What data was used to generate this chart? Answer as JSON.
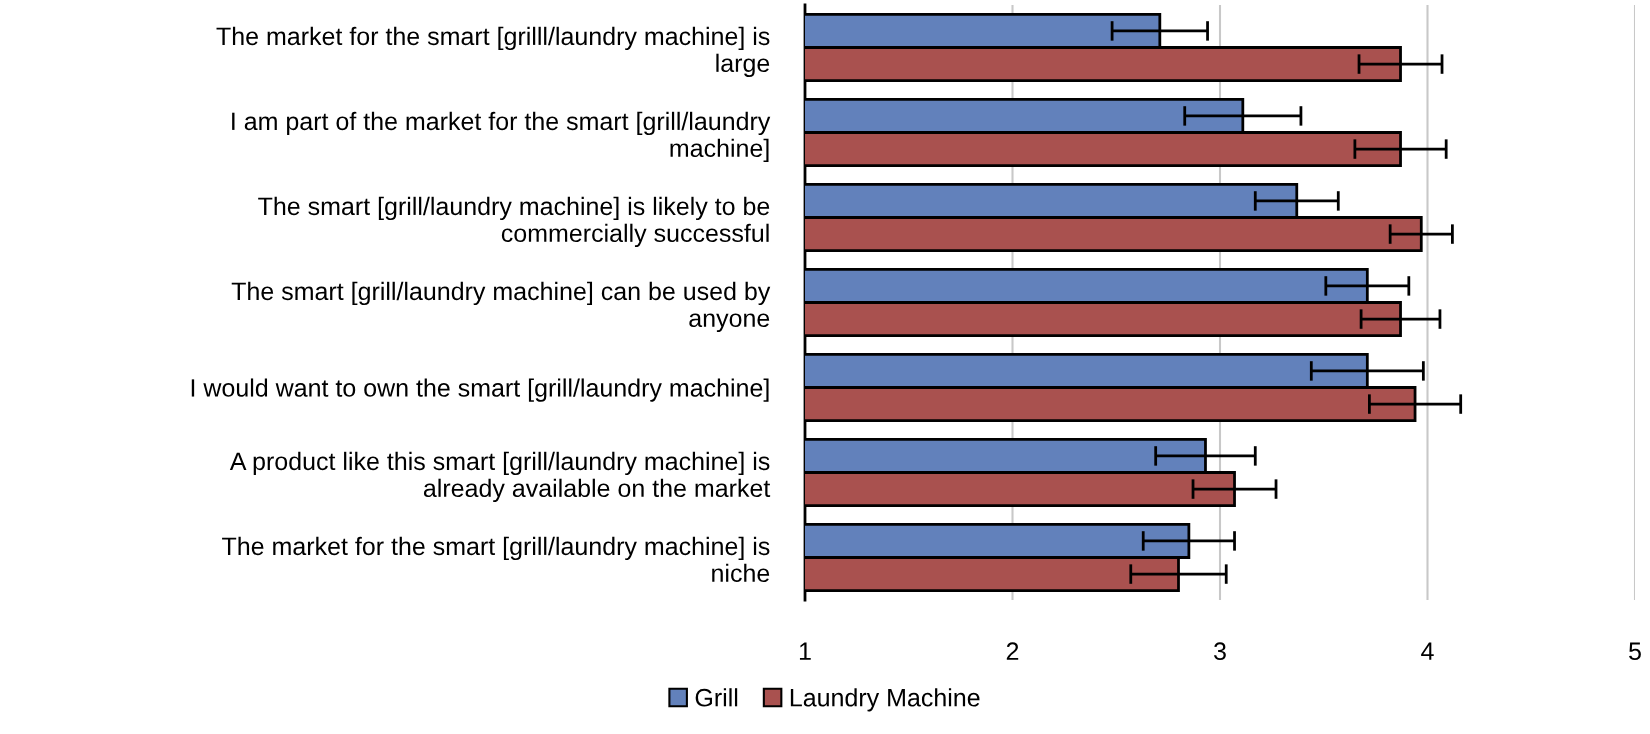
{
  "chart_data": {
    "type": "bar",
    "orientation": "horizontal",
    "categories": [
      "The market for the smart [grilll/laundry machine] is\nlarge",
      "I am part of the market for the smart [grill/laundry\nmachine]",
      "The smart [grill/laundry machine] is likely to be\ncommercially successful",
      "The smart [grill/laundry machine] can be used by\nanyone",
      "I would want to own the smart [grill/laundry machine]",
      "A product like this smart [grill/laundry machine] is\nalready available on the market",
      "The market for the smart [grill/laundry machine] is\nniche"
    ],
    "series": [
      {
        "name": "Grill",
        "color": "#6281bb",
        "values": [
          2.71,
          3.11,
          3.37,
          3.71,
          3.71,
          2.93,
          2.85
        ],
        "errors": [
          0.23,
          0.28,
          0.2,
          0.2,
          0.27,
          0.24,
          0.22
        ]
      },
      {
        "name": "Laundry Machine",
        "color": "#a9514f",
        "values": [
          3.87,
          3.87,
          3.97,
          3.87,
          3.94,
          3.07,
          2.8
        ],
        "errors": [
          0.2,
          0.22,
          0.15,
          0.19,
          0.22,
          0.2,
          0.23
        ]
      }
    ],
    "xlim": [
      1,
      5
    ],
    "xticks": [
      1,
      2,
      3,
      4,
      5
    ],
    "grid": "x",
    "legend": "bottom"
  }
}
